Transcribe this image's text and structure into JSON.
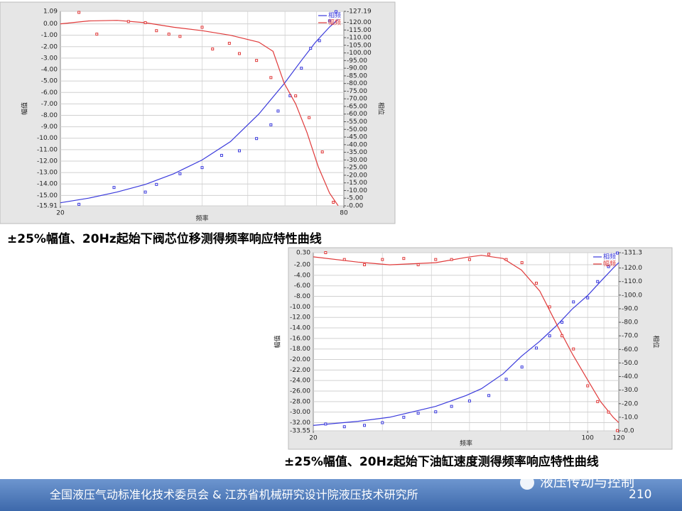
{
  "chart_data": [
    {
      "type": "line",
      "caption": "±25%幅值、20Hz起始下阀芯位移测得频率响应特性曲线",
      "x_label": "频率",
      "y_label": "幅值",
      "y2_label": "相位",
      "xlim": [
        20,
        80
      ],
      "xticks": [
        20,
        80
      ],
      "xlog": true,
      "ylim": [
        -15.91,
        1.09
      ],
      "y2lim": [
        0,
        -127.19
      ],
      "grid": true,
      "legend": "upper right",
      "yticks": [
        {
          "value": 1.09,
          "label": "1.09"
        },
        {
          "value": 0,
          "label": "0.00"
        },
        {
          "value": -1,
          "label": "-1.00"
        },
        {
          "value": -2,
          "label": "-2.00"
        },
        {
          "value": -3,
          "label": "-3.00"
        },
        {
          "value": -4,
          "label": "-4.00"
        },
        {
          "value": -5,
          "label": "-5.00"
        },
        {
          "value": -6,
          "label": "-6.00"
        },
        {
          "value": -7,
          "label": "-7.00"
        },
        {
          "value": -8,
          "label": "-8.00"
        },
        {
          "value": -9,
          "label": "-9.00"
        },
        {
          "value": -10,
          "label": "-10.00"
        },
        {
          "value": -11,
          "label": "-11.00"
        },
        {
          "value": -12,
          "label": "-12.00"
        },
        {
          "value": -13,
          "label": "-13.00"
        },
        {
          "value": -14,
          "label": "-14.00"
        },
        {
          "value": -15,
          "label": "-15.00"
        },
        {
          "value": -15.91,
          "label": "-15.91"
        }
      ],
      "y2ticks": [
        {
          "value": -127.19,
          "label": "-127.19"
        },
        {
          "value": -120,
          "label": "-120.00"
        },
        {
          "value": -115,
          "label": "-115.00"
        },
        {
          "value": -110,
          "label": "-110.00"
        },
        {
          "value": -105,
          "label": "-105.00"
        },
        {
          "value": -100,
          "label": "-100.00"
        },
        {
          "value": -95,
          "label": "-95.00"
        },
        {
          "value": -90,
          "label": "-90.00"
        },
        {
          "value": -85,
          "label": "-85.00"
        },
        {
          "value": -80,
          "label": "-80.00"
        },
        {
          "value": -75,
          "label": "-75.00"
        },
        {
          "value": -70,
          "label": "-70.00"
        },
        {
          "value": -65,
          "label": "-65.00"
        },
        {
          "value": -60,
          "label": "-60.00"
        },
        {
          "value": -55,
          "label": "-55.00"
        },
        {
          "value": -50,
          "label": "-50.00"
        },
        {
          "value": -45,
          "label": "-45.00"
        },
        {
          "value": -40,
          "label": "-40.00"
        },
        {
          "value": -35,
          "label": "-35.00"
        },
        {
          "value": -30,
          "label": "-30.00"
        },
        {
          "value": -25,
          "label": "-25.00"
        },
        {
          "value": -20,
          "label": "-20.00"
        },
        {
          "value": -15,
          "label": "-15.00"
        },
        {
          "value": -10,
          "label": "-10.00"
        },
        {
          "value": -5,
          "label": "-5.00"
        },
        {
          "value": 0,
          "label": "-0.00"
        }
      ],
      "series": [
        {
          "name": "相频",
          "color": "#3a3adc",
          "axis": "y2",
          "x": [
            20,
            22.97,
            26.39,
            30.31,
            34.82,
            40,
            45.95,
            52.78,
            59.78,
            65.0,
            69.64,
            74.6,
            77.8
          ],
          "values": [
            -2,
            -5,
            -9,
            -14,
            -21,
            -30,
            -42,
            -60,
            -80,
            -95,
            -107,
            -117,
            -122
          ],
          "points": {
            "x": [
              21.9,
              26.0,
              30.3,
              32.0,
              35.9,
              40.0,
              44.0,
              48.0,
              52.2,
              56.0,
              58.0,
              61.5,
              65.0,
              68.0,
              71.0,
              74.6,
              77.0
            ],
            "values": [
              -1,
              -12,
              -9,
              -14,
              -21,
              -25,
              -33,
              -36,
              -44,
              -53,
              -62,
              -72,
              -90,
              -103,
              -108,
              -121,
              -127
            ]
          }
        },
        {
          "name": "幅频",
          "color": "#e03a3a",
          "x": [
            20,
            22.97,
            26.39,
            30.31,
            34.82,
            40,
            45.95,
            52.78,
            56.57,
            59.78,
            63.2,
            66.8,
            70.6,
            74.6,
            77.8
          ],
          "values": [
            0,
            0.25,
            0.3,
            0.1,
            -0.3,
            -0.6,
            -1.0,
            -1.6,
            -2.4,
            -5.2,
            -7.0,
            -9.5,
            -12.5,
            -14.8,
            -15.9
          ],
          "points": {
            "x": [
              21.9,
              23.9,
              27.9,
              30.3,
              32.0,
              34.0,
              35.9,
              40.0,
              42.1,
              45.7,
              48.0,
              52.2,
              56.0,
              63.2,
              67.5,
              72.0,
              76.0
            ],
            "values": [
              1.0,
              -0.9,
              0.2,
              0.1,
              -0.6,
              -0.9,
              -1.1,
              -0.3,
              -2.2,
              -1.7,
              -2.6,
              -3.2,
              -4.7,
              -6.3,
              -8.2,
              -11.2,
              -15.6
            ]
          }
        }
      ]
    },
    {
      "type": "line",
      "caption": "±25%幅值、20Hz起始下油缸速度测得频率响应特性曲线",
      "x_label": "频率",
      "y_label": "幅值",
      "y2_label": "相位",
      "xlim": [
        20,
        120
      ],
      "xticks": [
        20,
        100,
        120
      ],
      "xlog": true,
      "ylim": [
        -33.55,
        0.3
      ],
      "y2lim": [
        0,
        -131.3
      ],
      "grid": true,
      "legend": "upper right",
      "yticks": [
        {
          "value": 0.3,
          "label": "0.30"
        },
        {
          "value": -2,
          "label": "-2.00"
        },
        {
          "value": -4,
          "label": "-4.00"
        },
        {
          "value": -6,
          "label": "-6.00"
        },
        {
          "value": -8,
          "label": "-8.00"
        },
        {
          "value": -10,
          "label": "-10.00"
        },
        {
          "value": -12,
          "label": "-12.00"
        },
        {
          "value": -14,
          "label": "-14.00"
        },
        {
          "value": -16,
          "label": "-16.00"
        },
        {
          "value": -18,
          "label": "-18.00"
        },
        {
          "value": -20,
          "label": "-20.00"
        },
        {
          "value": -22,
          "label": "-22.00"
        },
        {
          "value": -24,
          "label": "-24.00"
        },
        {
          "value": -26,
          "label": "-26.00"
        },
        {
          "value": -28,
          "label": "-28.00"
        },
        {
          "value": -30,
          "label": "-30.00"
        },
        {
          "value": -32,
          "label": "-32.00"
        },
        {
          "value": -33.55,
          "label": "-33.55"
        }
      ],
      "y2ticks": [
        {
          "value": -131.3,
          "label": "-131.3"
        },
        {
          "value": -120,
          "label": "-120.0"
        },
        {
          "value": -110,
          "label": "-110.0"
        },
        {
          "value": -100,
          "label": "-100.0"
        },
        {
          "value": -90,
          "label": "-90.0"
        },
        {
          "value": -80,
          "label": "-80.0"
        },
        {
          "value": -70,
          "label": "-70.0"
        },
        {
          "value": -60,
          "label": "-60.0"
        },
        {
          "value": -50,
          "label": "-50.0"
        },
        {
          "value": -40,
          "label": "-40.0"
        },
        {
          "value": -30,
          "label": "-30.0"
        },
        {
          "value": -20,
          "label": "-20.0"
        },
        {
          "value": -10,
          "label": "-10.0"
        },
        {
          "value": 0,
          "label": "-0.0"
        }
      ],
      "series": [
        {
          "name": "相频",
          "color": "#3a3adc",
          "axis": "y2",
          "x": [
            20,
            26.0,
            31.3,
            41.0,
            49.0,
            53.6,
            60.9,
            67.8,
            75.5,
            83.6,
            91.5,
            100.2,
            107.8,
            116.2,
            120
          ],
          "values": [
            -4,
            -7,
            -10,
            -18,
            -26,
            -31,
            -42,
            -55,
            -66,
            -78,
            -90,
            -100,
            -110,
            -120,
            -124
          ],
          "points": {
            "x": [
              21.5,
              24.0,
              27.0,
              30.0,
              34.0,
              37.0,
              41.0,
              45.0,
              50.0,
              56.0,
              62.0,
              68.0,
              74.0,
              80.0,
              86.0,
              92.0,
              100.0,
              106.0,
              113.0,
              119.0
            ],
            "values": [
              -5,
              -3,
              -4,
              -6,
              -10,
              -13,
              -14,
              -18,
              -22,
              -26,
              -38,
              -47,
              -61,
              -70,
              -80,
              -95,
              -98,
              -110,
              -121,
              -131
            ]
          }
        },
        {
          "name": "幅频",
          "color": "#e03a3a",
          "x": [
            20,
            26.0,
            31.3,
            41.0,
            49.0,
            53.6,
            60.9,
            67.8,
            75.5,
            83.6,
            91.5,
            100.2,
            107.8,
            116.2,
            120
          ],
          "values": [
            -0.5,
            -1.5,
            -2,
            -1.6,
            -0.6,
            -0.2,
            -0.8,
            -3,
            -7,
            -13.5,
            -19,
            -24,
            -28,
            -31,
            -32
          ],
          "points": {
            "x": [
              21.5,
              24.0,
              27.0,
              30.0,
              34.0,
              37.0,
              41.0,
              45.0,
              50.0,
              56.0,
              62.0,
              68.0,
              74.0,
              80.0,
              86.0,
              92.0,
              100.0,
              106.0,
              113.0,
              119.0
            ],
            "values": [
              0.3,
              -1.0,
              -2.0,
              -1.0,
              -0.8,
              -2.0,
              -1.0,
              -1.0,
              -1.0,
              0.0,
              -1.0,
              -1.6,
              -5.5,
              -10,
              -15.5,
              -18,
              -25,
              -28,
              -30,
              -33.5
            ]
          }
        }
      ]
    }
  ],
  "footer": {
    "left": "全国液压气动标准化技术委员会 & 江苏省机械研究设计院液压技术研究所",
    "brand": "液压传动与控制",
    "page": "210"
  }
}
